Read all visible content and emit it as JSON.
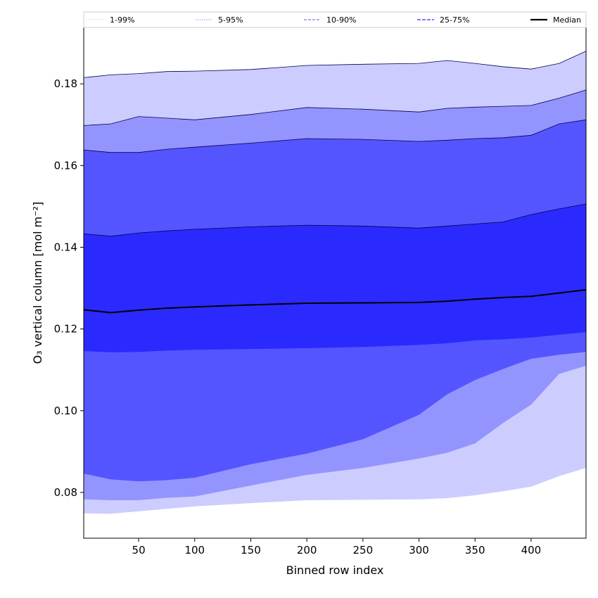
{
  "chart_data": {
    "type": "area",
    "title": "",
    "xlabel": "Binned row index",
    "ylabel": "O₃ vertical column [mol m⁻²]",
    "xlim": [
      1,
      449
    ],
    "ylim": [
      0.0688,
      0.1938
    ],
    "xticks": [
      50,
      100,
      150,
      200,
      250,
      300,
      350,
      400
    ],
    "yticks": [
      0.08,
      0.1,
      0.12,
      0.14,
      0.16,
      0.18
    ],
    "ytick_labels": [
      "0.08",
      "0.10",
      "0.12",
      "0.14",
      "0.16",
      "0.18"
    ],
    "legend_position": "top",
    "x": [
      1,
      25,
      50,
      75,
      100,
      150,
      200,
      250,
      300,
      325,
      350,
      375,
      400,
      425,
      449
    ],
    "bands": [
      {
        "name": "1-99%",
        "color": "#ccccff",
        "lower": [
          0.0749,
          0.0748,
          0.0754,
          0.076,
          0.0766,
          0.0774,
          0.0781,
          0.0782,
          0.0783,
          0.0786,
          0.0793,
          0.0803,
          0.0814,
          0.084,
          0.086
        ],
        "upper": [
          0.1815,
          0.1822,
          0.1825,
          0.183,
          0.1831,
          0.1835,
          0.1845,
          0.1848,
          0.185,
          0.1857,
          0.185,
          0.1842,
          0.1836,
          0.185,
          0.188
        ]
      },
      {
        "name": "5-95%",
        "color": "#9494ff",
        "lower": [
          0.0783,
          0.0781,
          0.0781,
          0.0787,
          0.079,
          0.0817,
          0.0843,
          0.086,
          0.0883,
          0.0897,
          0.092,
          0.097,
          0.1015,
          0.109,
          0.111
        ],
        "upper": [
          0.1698,
          0.1702,
          0.172,
          0.1716,
          0.1712,
          0.1725,
          0.1742,
          0.1738,
          0.1731,
          0.174,
          0.1743,
          0.1745,
          0.1747,
          0.1765,
          0.1785
        ]
      },
      {
        "name": "10-90%",
        "color": "#5555ff",
        "lower": [
          0.0846,
          0.0832,
          0.0827,
          0.083,
          0.0836,
          0.0869,
          0.0895,
          0.093,
          0.099,
          0.104,
          0.1075,
          0.1102,
          0.1127,
          0.1137,
          0.1144
        ],
        "upper": [
          0.1638,
          0.1632,
          0.1632,
          0.164,
          0.1645,
          0.1655,
          0.1666,
          0.1664,
          0.1659,
          0.1662,
          0.1666,
          0.1668,
          0.1674,
          0.1702,
          0.1712
        ]
      },
      {
        "name": "25-75%",
        "color": "#2a2aff",
        "lower": [
          0.1146,
          0.1143,
          0.1144,
          0.1147,
          0.1149,
          0.1151,
          0.1153,
          0.1156,
          0.1161,
          0.1165,
          0.1172,
          0.1175,
          0.1179,
          0.1186,
          0.1192
        ],
        "upper": [
          0.1433,
          0.1427,
          0.1435,
          0.144,
          0.1444,
          0.145,
          0.1454,
          0.1452,
          0.1447,
          0.1452,
          0.1457,
          0.1462,
          0.148,
          0.1494,
          0.1506
        ]
      }
    ],
    "median": {
      "name": "Median",
      "color": "#000000",
      "values": [
        0.1247,
        0.124,
        0.1246,
        0.1251,
        0.1254,
        0.1259,
        0.1263,
        0.1264,
        0.1265,
        0.1268,
        0.1273,
        0.1277,
        0.128,
        0.1288,
        0.1296
      ]
    }
  }
}
